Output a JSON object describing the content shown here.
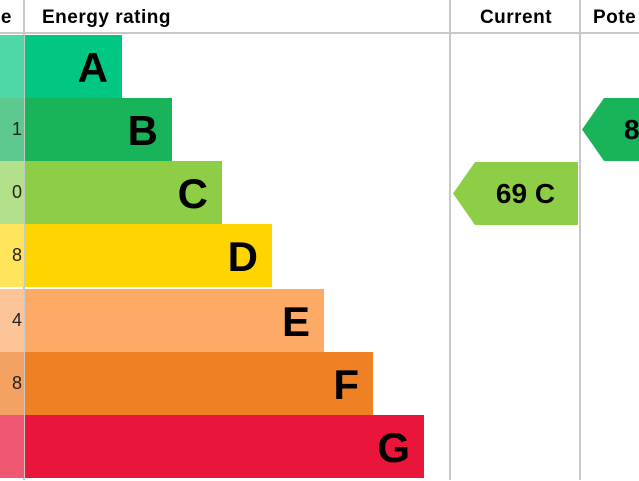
{
  "header": {
    "score_fragment": "e",
    "energy_rating": "Energy rating",
    "current": "Current",
    "potential_fragment": "Pote"
  },
  "chart_data": {
    "type": "bar",
    "title": "",
    "categories": [
      "A",
      "B",
      "C",
      "D",
      "E",
      "F",
      "G"
    ],
    "score_fragments": [
      "",
      "1",
      "0",
      "8",
      "4",
      "8",
      ""
    ],
    "colors": [
      "#00c781",
      "#19b459",
      "#8dce46",
      "#ffd500",
      "#fcaa65",
      "#ef8023",
      "#e9153b"
    ],
    "light_colors": [
      "#4dd8a6",
      "#5ec98e",
      "#b3e08a",
      "#ffe45c",
      "#fdc597",
      "#f3a262",
      "#ef5773"
    ],
    "current": {
      "value": 69,
      "band": "C",
      "label": "69 C",
      "color": "#8dce46"
    },
    "potential": {
      "band": "B",
      "label_fragment": "8",
      "color": "#19b459"
    }
  }
}
